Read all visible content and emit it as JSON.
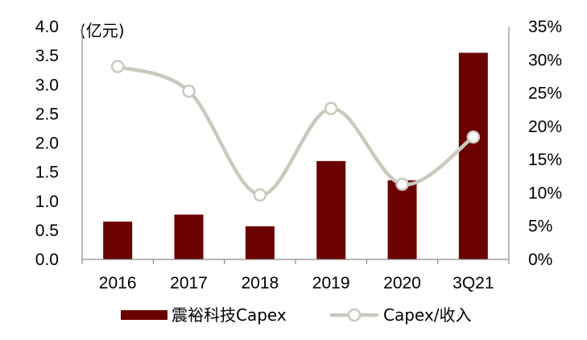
{
  "chart_data": {
    "type": "bar",
    "categories": [
      "2016",
      "2017",
      "2018",
      "2019",
      "2020",
      "3Q21"
    ],
    "left_unit_label": "(亿元)",
    "series": [
      {
        "name": "震裕科技Capex",
        "type": "bar",
        "axis": "left",
        "values": [
          0.65,
          0.77,
          0.57,
          1.69,
          1.36,
          3.55
        ],
        "color": "#6b0000"
      },
      {
        "name": "Capex/收入",
        "type": "line",
        "axis": "right",
        "values": [
          0.29,
          0.253,
          0.097,
          0.227,
          0.113,
          0.184
        ],
        "color": "#c9c9be",
        "marker_fill": "#ffffff"
      }
    ],
    "y_left": {
      "min": 0,
      "max": 4.0,
      "ticks": [
        "0.0",
        "0.5",
        "1.0",
        "1.5",
        "2.0",
        "2.5",
        "3.0",
        "3.5",
        "4.0"
      ]
    },
    "y_right": {
      "min": 0,
      "max": 0.35,
      "ticks": [
        "0%",
        "5%",
        "10%",
        "15%",
        "20%",
        "25%",
        "30%",
        "35%"
      ]
    },
    "grid": false,
    "legend_position": "bottom"
  }
}
